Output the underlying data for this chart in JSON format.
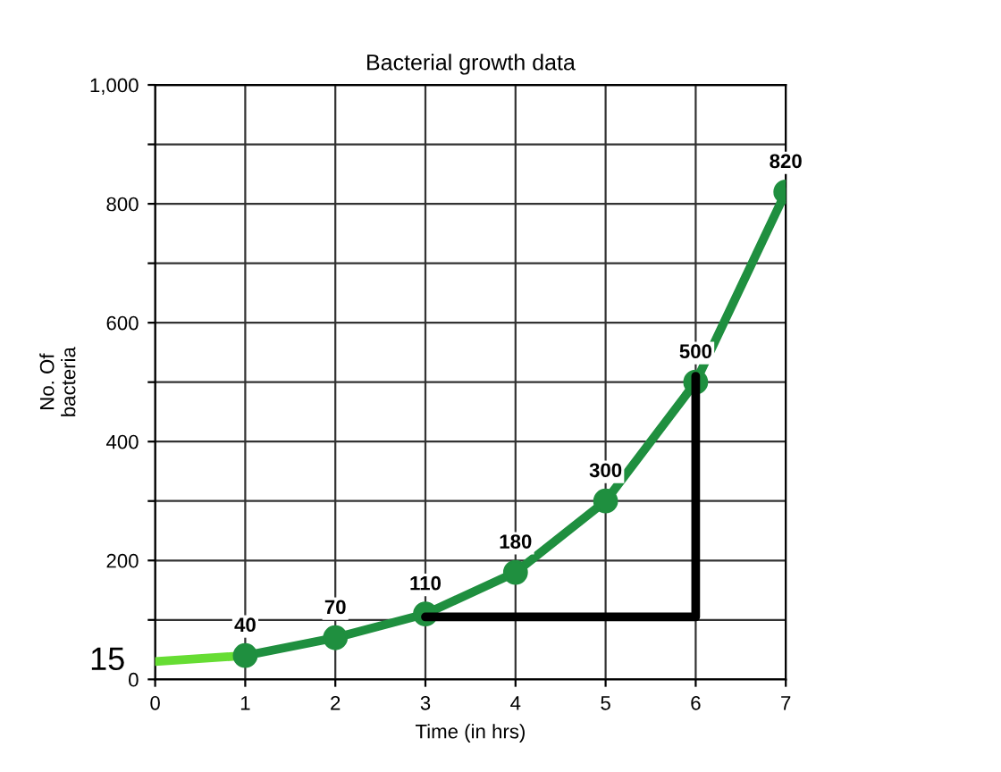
{
  "chart_data": {
    "type": "line",
    "title": "Bacterial growth data",
    "xlabel": "Time (in hrs)",
    "ylabel": "No. Of\nbacteria",
    "series": [
      {
        "color": "#66dd33",
        "x": [
          0,
          1
        ],
        "values": [
          30,
          40
        ],
        "marker": "none"
      },
      {
        "color": "#1f8f3f",
        "x": [
          1,
          2,
          3,
          4,
          5,
          6,
          7
        ],
        "values": [
          40,
          70,
          110,
          180,
          300,
          500,
          820
        ],
        "marker": "circle",
        "value_labels": [
          "40",
          "70",
          "110",
          "180",
          "300",
          "500",
          "820"
        ]
      },
      {
        "color": "#000000",
        "x": [
          3,
          6,
          6
        ],
        "values": [
          105,
          105,
          510
        ],
        "marker": "none"
      }
    ],
    "annotations": [
      "15"
    ],
    "xlim": [
      0,
      7
    ],
    "ylim": [
      0,
      1000
    ],
    "xticks": [
      0,
      1,
      2,
      3,
      4,
      5,
      6,
      7
    ],
    "yticks": [
      0,
      {
        "value": 100,
        "label": null
      },
      200,
      {
        "value": 300,
        "label": null
      },
      400,
      {
        "value": 500,
        "label": null
      },
      600,
      {
        "value": 700,
        "label": null
      },
      800,
      {
        "value": 900,
        "label": null
      },
      {
        "value": 1000,
        "label": "1,000"
      }
    ],
    "grid": true,
    "legend": false,
    "line_style": "solid"
  }
}
